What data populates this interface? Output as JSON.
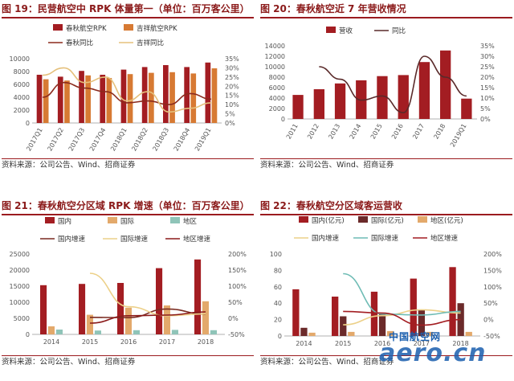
{
  "panels": [
    {
      "title": "图 19：民营航空中 RPK 体量第一（单位：百万客公里）",
      "source": "资料来源：公司公告、Wind、招商证券",
      "chart_data": {
        "type": "bar",
        "categories": [
          "2017Q1",
          "2017Q2",
          "2017Q3",
          "2017Q4",
          "2018Q1",
          "2018Q2",
          "2018Q3",
          "2018Q4",
          "2019Q1"
        ],
        "ylim": [
          0,
          10000
        ],
        "yticks": [
          "0",
          "2000",
          "4000",
          "6000",
          "8000",
          "10000"
        ],
        "y2lim": [
          0,
          0.35
        ],
        "y2ticks": [
          "0%",
          "5%",
          "10%",
          "15%",
          "20%",
          "25%",
          "30%",
          "35%"
        ],
        "legend": [
          "春秋航空RPK",
          "吉祥航空RPK",
          "春秋同比",
          "吉祥同比"
        ],
        "series": [
          {
            "name": "春秋航空RPK",
            "kind": "bar",
            "color": "#a31d22",
            "values": [
              7500,
              7200,
              8100,
              7500,
              8300,
              8700,
              9000,
              8700,
              9400
            ]
          },
          {
            "name": "吉祥航空RPK",
            "kind": "bar",
            "color": "#d77a33",
            "values": [
              6800,
              6600,
              7400,
              7000,
              7600,
              7800,
              7900,
              7700,
              8500
            ]
          },
          {
            "name": "春秋同比",
            "kind": "line",
            "color": "#8b2a1c",
            "values": [
              0.14,
              0.22,
              0.19,
              0.17,
              0.11,
              0.12,
              0.1,
              0.16,
              0.13
            ]
          },
          {
            "name": "吉祥同比",
            "kind": "line",
            "color": "#e5c07b",
            "values": [
              0.26,
              0.3,
              0.22,
              0.25,
              0.12,
              0.17,
              0.06,
              0.08,
              0.11
            ]
          }
        ]
      }
    },
    {
      "title": "图 20：春秋航空近 7 年营收情况",
      "source": "资料来源：公司公告、Wind、招商证券",
      "chart_data": {
        "type": "bar",
        "categories": [
          "2011",
          "2012",
          "2013",
          "2014",
          "2015",
          "2016",
          "2017",
          "2018",
          "2019Q1"
        ],
        "ylim": [
          0,
          14000
        ],
        "yticks": [
          "0",
          "2000",
          "4000",
          "6000",
          "8000",
          "10000",
          "12000",
          "14000"
        ],
        "y2lim": [
          0,
          0.35
        ],
        "y2ticks": [
          "0%",
          "5%",
          "10%",
          "15%",
          "20%",
          "25%",
          "30%",
          "35%"
        ],
        "legend": [
          "营收",
          "同比"
        ],
        "series": [
          {
            "name": "营收",
            "kind": "bar",
            "color": "#a31d22",
            "values": [
              4600,
              5700,
              6800,
              7400,
              8200,
              8400,
              10900,
              13100,
              3900
            ]
          },
          {
            "name": "同比",
            "kind": "line",
            "color": "#5a2a2a",
            "values": [
              null,
              0.25,
              0.19,
              0.09,
              0.11,
              0.03,
              0.3,
              0.2,
              0.11
            ]
          }
        ]
      }
    },
    {
      "title": "图 21：春秋航空分区域 RPK 增速（单位：百万客公里）",
      "source": "资料来源：公司公告、Wind、招商证券",
      "chart_data": {
        "type": "bar",
        "categories": [
          "2014",
          "2015",
          "2016",
          "2017",
          "2018"
        ],
        "ylim": [
          0,
          25000
        ],
        "yticks": [
          "0",
          "5000",
          "10000",
          "15000",
          "20000",
          "25000"
        ],
        "y2lim": [
          -0.5,
          2.0
        ],
        "y2ticks": [
          "-50%",
          "0%",
          "50%",
          "100%",
          "150%",
          "200%"
        ],
        "legend": [
          "国内",
          "国际",
          "地区",
          "国内增速",
          "国际增速",
          "地区增速"
        ],
        "series": [
          {
            "name": "国内",
            "kind": "bar",
            "color": "#a31d22",
            "values": [
              15300,
              15700,
              16000,
              20600,
              23300
            ]
          },
          {
            "name": "国际",
            "kind": "bar",
            "color": "#e3a96b",
            "values": [
              2500,
              6100,
              8300,
              9000,
              10300
            ]
          },
          {
            "name": "地区",
            "kind": "bar",
            "color": "#8fc4b8",
            "values": [
              1500,
              1200,
              1300,
              1400,
              1300
            ]
          },
          {
            "name": "国内增速",
            "kind": "line",
            "color": "#7a2a20",
            "values": [
              null,
              0.03,
              0.02,
              0.29,
              0.13
            ]
          },
          {
            "name": "国际增速",
            "kind": "line",
            "color": "#ecd088",
            "values": [
              null,
              1.4,
              0.36,
              0.08,
              0.14
            ]
          },
          {
            "name": "地区增速",
            "kind": "line",
            "color": "#8b1a1a",
            "values": [
              null,
              -0.15,
              0.08,
              0.1,
              0.2
            ]
          }
        ]
      }
    },
    {
      "title": "图 22：春秋航空分区域客运营收",
      "source": "资料来源：公司公告、Wind、招商证券",
      "chart_data": {
        "type": "bar",
        "categories": [
          "2014",
          "2015",
          "2016",
          "2017",
          "2018"
        ],
        "ylim": [
          0,
          100
        ],
        "yticks": [
          "0",
          "20",
          "40",
          "60",
          "80",
          "100"
        ],
        "y2lim": [
          -0.5,
          2.0
        ],
        "y2ticks": [
          "-50%",
          "0%",
          "50%",
          "100%",
          "150%",
          "200%"
        ],
        "legend": [
          "国内(亿元)",
          "国际(亿元)",
          "地区(亿元)",
          "国内增速",
          "国际增速",
          "地区增速"
        ],
        "series": [
          {
            "name": "国内(亿元)",
            "kind": "bar",
            "color": "#a31d22",
            "values": [
              57,
              48,
              54,
              70,
              84
            ]
          },
          {
            "name": "国际(亿元)",
            "kind": "bar",
            "color": "#6b2a2a",
            "values": [
              10,
              24,
              28,
              32,
              40
            ]
          },
          {
            "name": "地区(亿元)",
            "kind": "bar",
            "color": "#e3a96b",
            "values": [
              4,
              5,
              6,
              5,
              5
            ]
          },
          {
            "name": "国内增速",
            "kind": "line",
            "color": "#ecd088",
            "values": [
              null,
              -0.16,
              0.12,
              0.3,
              0.2
            ]
          },
          {
            "name": "国际增速",
            "kind": "line",
            "color": "#6fbcb5",
            "values": [
              null,
              1.4,
              0.17,
              0.14,
              0.25
            ]
          },
          {
            "name": "地区增速",
            "kind": "line",
            "color": "#a31d22",
            "values": [
              null,
              0.25,
              0.2,
              -0.17,
              0.0
            ]
          }
        ]
      }
    }
  ],
  "watermark": {
    "top": "中国航空网",
    "main": "aero.cn"
  }
}
